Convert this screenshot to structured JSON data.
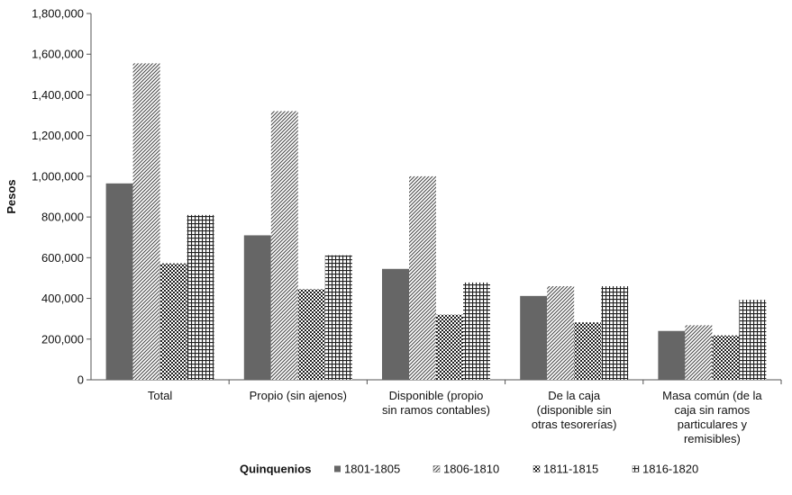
{
  "chart_data": {
    "type": "bar",
    "ylabel": "Pesos",
    "ylim": [
      0,
      1800000
    ],
    "ytick_step": 200000,
    "yticks": [
      "0",
      "200,000",
      "400,000",
      "600,000",
      "800,000",
      "1,000,000",
      "1,200,000",
      "1,400,000",
      "1,600,000",
      "1,800,000"
    ],
    "grid": false,
    "categories": [
      [
        "Total"
      ],
      [
        "Propio (sin ajenos)"
      ],
      [
        "Disponible (propio",
        "sin ramos contables)"
      ],
      [
        "De la caja",
        "(disponible sin",
        "otras tesorerías)"
      ],
      [
        "Masa común (de la",
        "caja sin ramos",
        "particulares y",
        "remisibles)"
      ]
    ],
    "series": [
      {
        "name": "1801-1805",
        "values": [
          965000,
          710000,
          545000,
          412000,
          240000
        ],
        "pattern": "solid",
        "color": "#666666"
      },
      {
        "name": "1806-1810",
        "values": [
          1555000,
          1320000,
          1000000,
          460000,
          268000
        ],
        "pattern": "diagonal",
        "color": "#555555"
      },
      {
        "name": "1811-1815",
        "values": [
          572000,
          445000,
          320000,
          282000,
          218000
        ],
        "pattern": "checker",
        "color": "#222222"
      },
      {
        "name": "1816-1820",
        "values": [
          810000,
          612000,
          478000,
          460000,
          393000
        ],
        "pattern": "grid",
        "color": "#222222"
      }
    ],
    "legend": {
      "title": "Quinquenios",
      "position": "bottom"
    }
  }
}
